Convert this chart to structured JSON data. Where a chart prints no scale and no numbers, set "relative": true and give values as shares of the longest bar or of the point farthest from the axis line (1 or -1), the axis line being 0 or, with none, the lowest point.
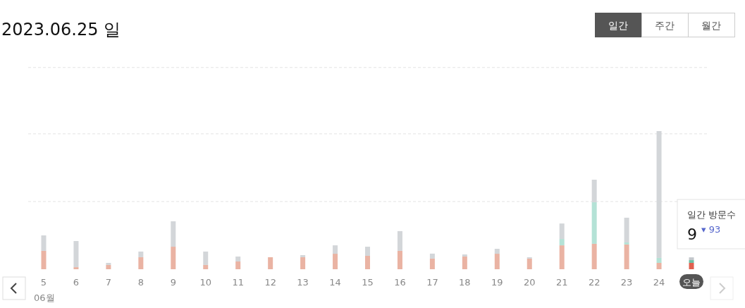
{
  "chart_data": {
    "type": "bar",
    "title": "2023.06.25 일",
    "stacked": true,
    "relative": true,
    "ref_lines": [
      {
        "axis": "y",
        "value": 0.49,
        "color": "#e3e3e3",
        "line_style": "dashed"
      },
      {
        "axis": "y",
        "value": 0.98,
        "color": "#e3e3e3",
        "line_style": "dashed"
      },
      {
        "axis": "y",
        "value": 1.46,
        "color": "#e3e3e3",
        "line_style": "dashed"
      }
    ],
    "categories": [
      "5",
      "6",
      "7",
      "8",
      "9",
      "10",
      "11",
      "12",
      "13",
      "14",
      "15",
      "16",
      "17",
      "18",
      "19",
      "20",
      "21",
      "22",
      "23",
      "24",
      "오늘"
    ],
    "series": [
      {
        "colors": [
          "#eab3a3",
          "#eab3a3",
          "#eab3a3",
          "#eab3a3",
          "#eab3a3",
          "#eab3a3",
          "#eab3a3",
          "#eab3a3",
          "#eab3a3",
          "#eab3a3",
          "#eab3a3",
          "#eab3a3",
          "#eab3a3",
          "#eab3a3",
          "#eab3a3",
          "#eab3a3",
          "#eab3a3",
          "#eab3a3",
          "#eab3a3",
          "#eab3a3",
          "#e0604f"
        ],
        "values": [
          0.133,
          0.015,
          0.031,
          0.087,
          0.163,
          0.031,
          0.056,
          0.087,
          0.087,
          0.112,
          0.097,
          0.133,
          0.077,
          0.092,
          0.112,
          0.077,
          0.173,
          0.184,
          0.179,
          0.046,
          0.046
        ]
      },
      {
        "colors": [
          null,
          null,
          null,
          null,
          null,
          null,
          null,
          null,
          null,
          null,
          null,
          null,
          null,
          null,
          null,
          null,
          "#b4e2d6",
          "#b4e2d6",
          "#b4e2d6",
          "#b4e2d6",
          "#6cc0a4"
        ],
        "values": [
          null,
          null,
          null,
          null,
          null,
          null,
          null,
          null,
          null,
          null,
          null,
          null,
          null,
          null,
          null,
          null,
          0.046,
          0.301,
          0.015,
          0.036,
          0.02
        ]
      },
      {
        "colors": [
          "#d3d6d9",
          "#d3d6d9",
          "#d3d6d9",
          "#d3d6d9",
          "#d3d6d9",
          "#d3d6d9",
          "#d3d6d9",
          null,
          "#d3d6d9",
          "#d3d6d9",
          "#d3d6d9",
          "#d3d6d9",
          "#d3d6d9",
          "#d3d6d9",
          "#d3d6d9",
          "#d3d6d9",
          "#d3d6d9",
          "#d3d6d9",
          "#d3d6d9",
          "#d3d6d9",
          "#c3c7cb"
        ],
        "values": [
          0.112,
          0.189,
          0.015,
          0.041,
          0.184,
          0.097,
          0.036,
          null,
          0.015,
          0.061,
          0.066,
          0.143,
          0.036,
          0.015,
          0.036,
          0.01,
          0.112,
          0.163,
          0.179,
          0.918,
          0.02
        ]
      }
    ],
    "annotations": [
      "일간",
      "주간",
      "월간",
      "06월",
      "일간 방문수",
      "9",
      "▾ 93"
    ]
  }
}
